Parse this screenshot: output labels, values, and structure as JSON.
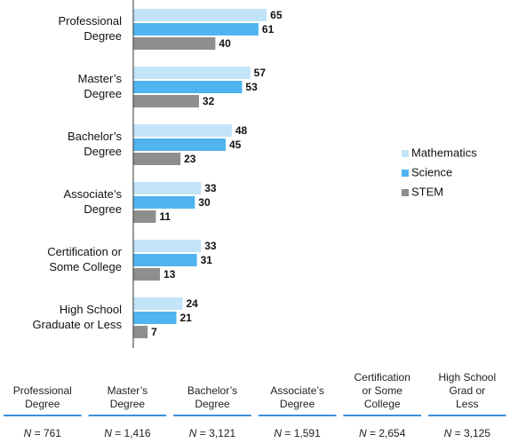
{
  "chart_data": {
    "type": "bar",
    "orientation": "horizontal",
    "categories": [
      [
        "Professional",
        "Degree"
      ],
      [
        "Master’s",
        "Degree"
      ],
      [
        "Bachelor’s",
        "Degree"
      ],
      [
        "Associate’s",
        "Degree"
      ],
      [
        "Certification or",
        "Some College"
      ],
      [
        "High School",
        "Graduate or Less"
      ]
    ],
    "series": [
      {
        "name": "Mathematics",
        "color": "#c2e4f8",
        "values": [
          65,
          57,
          48,
          33,
          33,
          24
        ]
      },
      {
        "name": "Science",
        "color": "#4fb4ef",
        "values": [
          61,
          53,
          45,
          30,
          31,
          21
        ]
      },
      {
        "name": "STEM",
        "color": "#8e8e8e",
        "values": [
          40,
          32,
          23,
          11,
          13,
          7
        ]
      }
    ],
    "xlim": [
      0,
      100
    ],
    "legend": "right"
  },
  "table": {
    "headers": [
      [
        "Professional",
        "Degree"
      ],
      [
        "Master’s",
        "Degree"
      ],
      [
        "Bachelor’s",
        "Degree"
      ],
      [
        "Associate’s",
        "Degree"
      ],
      [
        "Certification",
        "or Some",
        "College"
      ],
      [
        "High School",
        "Grad or",
        "Less"
      ]
    ],
    "rows": [
      [
        [
          "N",
          " = 761"
        ],
        [
          "N",
          " = 1,416"
        ],
        [
          "N",
          " = 3,121"
        ],
        [
          "N",
          " = 1,591"
        ],
        [
          "N",
          " = 2,654"
        ],
        [
          "N",
          " = 3,125"
        ]
      ]
    ]
  }
}
